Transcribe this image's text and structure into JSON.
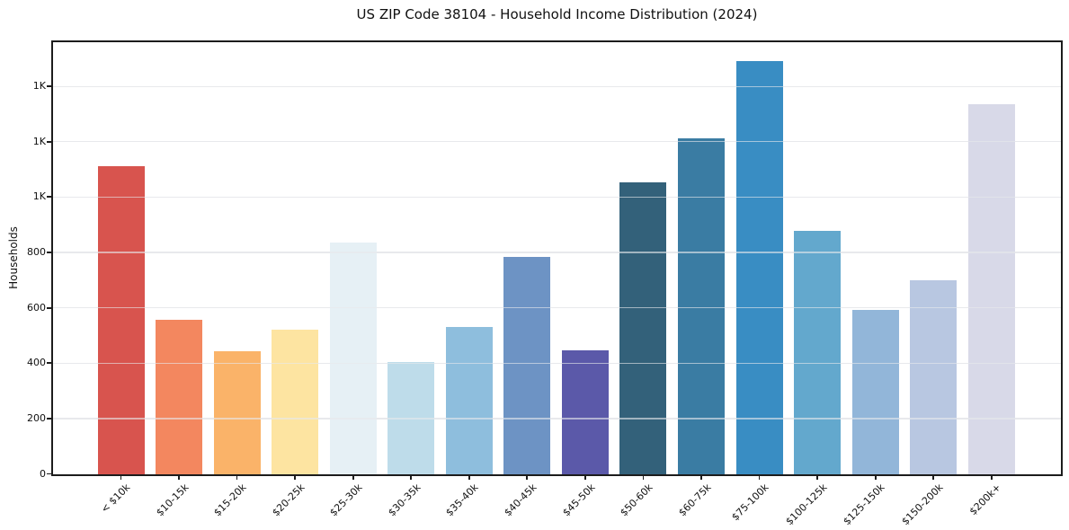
{
  "figure": {
    "title": "US ZIP Code 38104 - Household Income Distribution (2024)",
    "ylabel": "Households"
  },
  "chart_data": {
    "type": "bar",
    "title": "US ZIP Code 38104 - Household Income Distribution (2024)",
    "xlabel": "",
    "ylabel": "Households",
    "categories": [
      "< $10k",
      "$10-15k",
      "$15-20k",
      "$20-25k",
      "$25-30k",
      "$30-35k",
      "$35-40k",
      "$40-45k",
      "$45-50k",
      "$50-60k",
      "$60-75k",
      "$75-100k",
      "$100-125k",
      "$125-150k",
      "$150-200k",
      "$200k+"
    ],
    "values": [
      1113,
      556,
      444,
      521,
      836,
      404,
      531,
      784,
      446,
      1052,
      1211,
      1491,
      879,
      592,
      699,
      1334
    ],
    "bar_colors": [
      "#d8544e",
      "#f3875f",
      "#fab369",
      "#fde4a1",
      "#e6f0f5",
      "#bedcea",
      "#8ebedd",
      "#6d93c4",
      "#5b59a9",
      "#33617a",
      "#3a7ca3",
      "#398dc3",
      "#63a8cd",
      "#92b6d9",
      "#b8c7e1",
      "#d8d9e8"
    ],
    "ylim": [
      0,
      1561
    ],
    "yticks": [
      0,
      200,
      400,
      600,
      800,
      1000,
      1200,
      1400
    ],
    "ytick_labels": [
      "0",
      "200",
      "400",
      "600",
      "800",
      "1K",
      "1K",
      "1K"
    ],
    "grid": "horizontal-light",
    "legend": "none",
    "bar_alpha_note": "gridlines faintly visible through bars"
  }
}
